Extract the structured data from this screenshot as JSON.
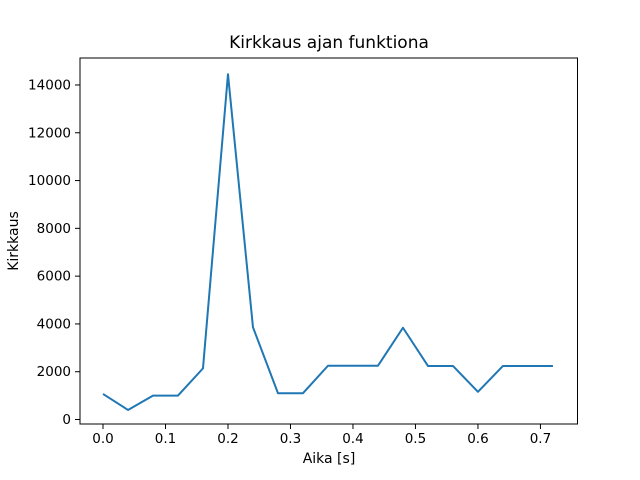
{
  "figure": {
    "background": "#ffffff"
  },
  "chart_data": {
    "type": "line",
    "title": "Kirkkaus ajan funktiona",
    "xlabel": "Aika [s]",
    "ylabel": "Kirkkaus",
    "x": [
      0.0,
      0.04,
      0.08,
      0.12,
      0.16,
      0.2,
      0.24,
      0.28,
      0.32,
      0.36,
      0.4,
      0.44,
      0.48,
      0.52,
      0.56,
      0.6,
      0.64,
      0.68,
      0.72
    ],
    "y": [
      1070,
      400,
      1000,
      1000,
      2140,
      14450,
      3860,
      1100,
      1100,
      2250,
      2250,
      2250,
      3840,
      2240,
      2240,
      1160,
      2240,
      2240,
      2240
    ],
    "xlim": [
      -0.0368,
      0.7593
    ],
    "ylim": [
      -188,
      15129
    ],
    "xticks": [
      0.0,
      0.1,
      0.2,
      0.3,
      0.4,
      0.5,
      0.6,
      0.7
    ],
    "xtick_labels": [
      "0.0",
      "0.1",
      "0.2",
      "0.3",
      "0.4",
      "0.5",
      "0.6",
      "0.7"
    ],
    "yticks": [
      0,
      2000,
      4000,
      6000,
      8000,
      10000,
      12000,
      14000
    ],
    "ytick_labels": [
      "0",
      "2000",
      "4000",
      "6000",
      "8000",
      "10000",
      "12000",
      "14000"
    ],
    "line_color": "#1f77b4",
    "axis_color": "#000000",
    "grid": false,
    "legend_position": "none"
  }
}
